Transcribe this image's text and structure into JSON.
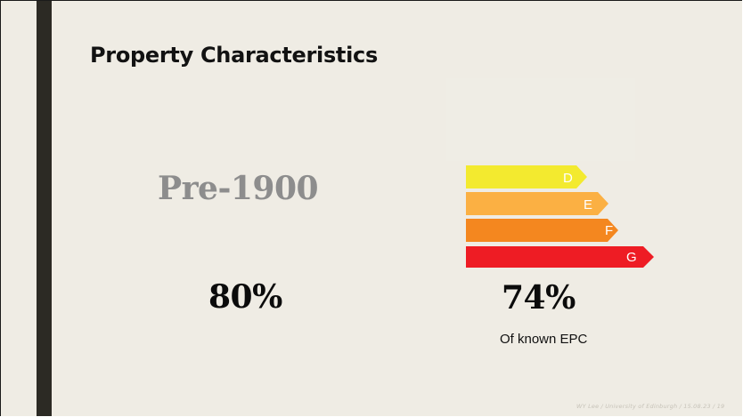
{
  "slide": {
    "title": "Property Characteristics",
    "left_panel": {
      "category": "Pre-1900",
      "percentage": "80%"
    },
    "right_panel": {
      "percentage": "74%",
      "caption": "Of known EPC"
    },
    "epc_bands": [
      {
        "letter": "D",
        "color": "#f3ea2f"
      },
      {
        "letter": "E",
        "color": "#fbb043"
      },
      {
        "letter": "F",
        "color": "#f4871f"
      },
      {
        "letter": "G",
        "color": "#ee1c24"
      }
    ],
    "footer": "WY Lee / University of Edinburgh / 15.08.23 / 19"
  }
}
